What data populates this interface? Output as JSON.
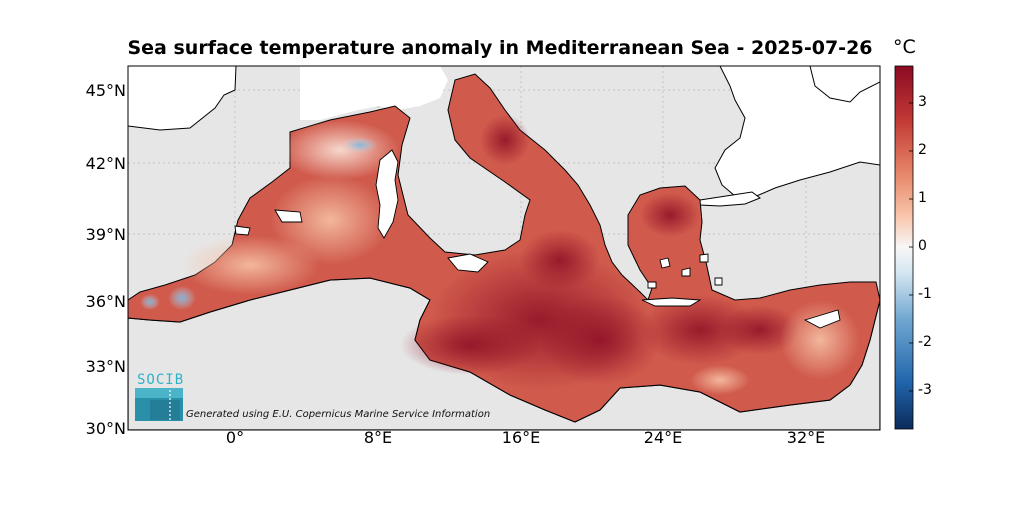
{
  "title": "Sea surface temperature anomaly in Mediterranean Sea - 2025-07-26",
  "colorbar": {
    "unit": "°C",
    "ticks": [
      "3",
      "2",
      "1",
      "0",
      "-1",
      "-2",
      "-3"
    ],
    "range": [
      -3.8,
      3.8
    ],
    "colors": [
      "#0b2b5c",
      "#2166ac",
      "#6fa6d0",
      "#d4e6f1",
      "#f7f7f7",
      "#f9c9b0",
      "#e7886a",
      "#c23a35",
      "#8b0a22"
    ]
  },
  "axes": {
    "lat_labels": [
      "45°N",
      "42°N",
      "39°N",
      "36°N",
      "33°N",
      "30°N"
    ],
    "lon_labels": [
      "0°",
      "8°E",
      "16°E",
      "24°E",
      "32°E"
    ],
    "lat_range": [
      30,
      46
    ],
    "lon_range": [
      -6,
      36.5
    ],
    "grid": true
  },
  "colors": {
    "land": "#ffffff",
    "no_data": "#e6e6e6",
    "coast": "#000000",
    "grid": "#b0b0b0"
  },
  "logo": {
    "text": "SOCIB"
  },
  "credit": "Generated using E.U. Copernicus Marine Service Information"
}
